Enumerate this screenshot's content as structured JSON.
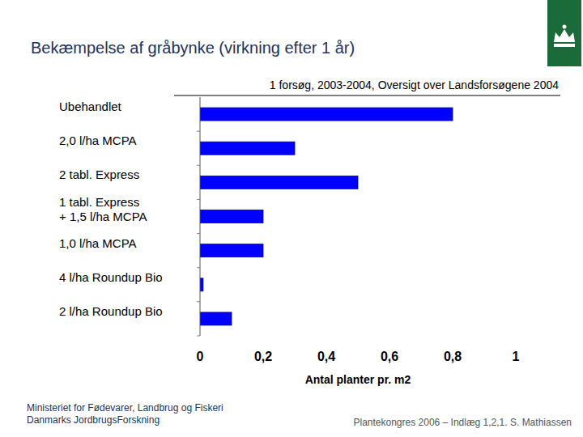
{
  "chart_data": {
    "type": "bar",
    "orientation": "horizontal",
    "title": "Bekæmpelse af gråbynke (virkning efter 1 år)",
    "subtitle": "1 forsøg, 2003-2004, Oversigt over Landsforsøgene 2004",
    "x_label": "Antal planter pr. m2",
    "categories": [
      "Ubehandlet",
      "2,0 l/ha MCPA",
      "2 tabl. Express",
      "1 tabl. Express\n+ 1,5 l/ha MCPA",
      "1,0 l/ha MCPA",
      "4 l/ha Roundup Bio",
      "2 l/ha Roundup Bio"
    ],
    "values": [
      0.8,
      0.3,
      0.5,
      0.2,
      0.2,
      0.01,
      0.1
    ],
    "color": "#0000ff",
    "xlim": [
      0,
      1
    ],
    "xticks": [
      0,
      {
        "value": 0.2,
        "label": "0,2"
      },
      {
        "value": 0.4,
        "label": "0,4"
      },
      {
        "value": 0.6,
        "label": "0,6"
      },
      {
        "value": 0.8,
        "label": "0,8"
      },
      1
    ],
    "grid": false
  },
  "footer": {
    "left": [
      "Ministeriet for Fødevarer, Landbrug og Fiskeri",
      "Danmarks JordbrugsForskning"
    ],
    "right": "Plantekongres 2006 – Indlæg 1,2,1.  S. Mathiassen"
  }
}
